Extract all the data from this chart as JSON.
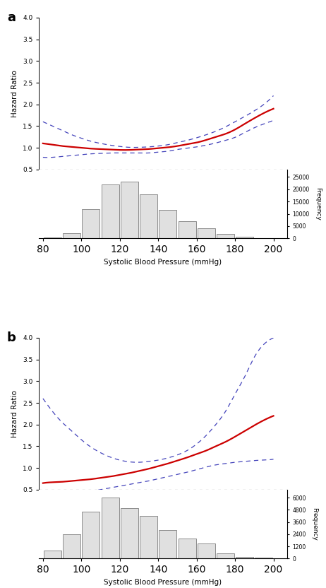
{
  "panel_a": {
    "label": "a",
    "x_range": [
      78,
      207
    ],
    "hr_ylim": [
      0.5,
      4.0
    ],
    "hr_yticks": [
      0.5,
      1.0,
      1.5,
      2.0,
      2.5,
      3.0,
      3.5,
      4.0
    ],
    "hr_ytick_labels": [
      "0.5",
      "1.0",
      "1.5",
      "2.0",
      "2.5",
      "3.0",
      "3.5",
      "4.0"
    ],
    "hr_ylabel": "Hazard Ratio",
    "freq_yticks": [
      0,
      5000,
      10000,
      15000,
      20000,
      25000
    ],
    "freq_ytick_labels": [
      "0",
      "5000",
      "10000",
      "15000",
      "20000",
      "25000"
    ],
    "freq_ylabel": "Frequency",
    "freq_ylim": [
      0,
      28000
    ],
    "xlabel": "Systolic Blood Pressure (mmHg)",
    "xticks": [
      80,
      100,
      120,
      140,
      160,
      180,
      200
    ],
    "ref_line_y": 0.5,
    "hist_edges": [
      80,
      90,
      100,
      110,
      120,
      130,
      140,
      150,
      160,
      170,
      180,
      190,
      200
    ],
    "hist_counts": [
      300,
      2000,
      12000,
      22000,
      23000,
      18000,
      11500,
      7000,
      4200,
      1800,
      600,
      200
    ],
    "hr_x": [
      80,
      85,
      90,
      95,
      100,
      105,
      110,
      115,
      120,
      125,
      130,
      135,
      140,
      145,
      150,
      155,
      160,
      165,
      170,
      175,
      180,
      185,
      190,
      195,
      200
    ],
    "hr_y": [
      1.1,
      1.07,
      1.04,
      1.02,
      1.0,
      0.98,
      0.97,
      0.96,
      0.95,
      0.95,
      0.96,
      0.97,
      0.99,
      1.01,
      1.04,
      1.08,
      1.12,
      1.18,
      1.25,
      1.32,
      1.42,
      1.55,
      1.68,
      1.8,
      1.9
    ],
    "ci_up": [
      1.6,
      1.5,
      1.4,
      1.3,
      1.22,
      1.15,
      1.1,
      1.06,
      1.03,
      1.01,
      1.01,
      1.02,
      1.04,
      1.07,
      1.12,
      1.17,
      1.23,
      1.3,
      1.38,
      1.48,
      1.6,
      1.72,
      1.85,
      2.0,
      2.2
    ],
    "ci_lo": [
      0.78,
      0.78,
      0.8,
      0.82,
      0.84,
      0.86,
      0.87,
      0.88,
      0.88,
      0.88,
      0.88,
      0.88,
      0.9,
      0.92,
      0.96,
      0.99,
      1.02,
      1.06,
      1.11,
      1.17,
      1.24,
      1.35,
      1.46,
      1.55,
      1.63
    ]
  },
  "panel_b": {
    "label": "b",
    "x_range": [
      78,
      207
    ],
    "hr_ylim": [
      0.5,
      4.0
    ],
    "hr_yticks": [
      0.5,
      1.0,
      1.5,
      2.0,
      2.5,
      3.0,
      3.5,
      4.0
    ],
    "hr_ytick_labels": [
      "0.5",
      "1.0",
      "1.5",
      "2.0",
      "2.5",
      "3.0",
      "3.5",
      "4.0"
    ],
    "hr_ylabel": "Hazard Ratio",
    "freq_yticks": [
      0,
      1200,
      2400,
      3600,
      4800,
      6000
    ],
    "freq_ytick_labels": [
      "0",
      "1200",
      "2400",
      "3600",
      "4800",
      "6000"
    ],
    "freq_ylabel": "Frequency",
    "freq_ylim": [
      0,
      6800
    ],
    "xlabel": "Systolic Blood Pressure (mmHg)",
    "xticks": [
      80,
      100,
      120,
      140,
      160,
      180,
      200
    ],
    "ref_line_y": 0.5,
    "hist_edges": [
      80,
      90,
      100,
      110,
      120,
      130,
      140,
      150,
      160,
      170,
      180,
      190,
      200
    ],
    "hist_counts": [
      800,
      2400,
      4600,
      6000,
      5000,
      4200,
      2800,
      2000,
      1500,
      500,
      200,
      100
    ],
    "hr_x": [
      80,
      85,
      90,
      95,
      100,
      105,
      110,
      115,
      120,
      125,
      130,
      135,
      140,
      145,
      150,
      155,
      160,
      165,
      170,
      175,
      180,
      185,
      190,
      195,
      200
    ],
    "hr_y": [
      0.65,
      0.67,
      0.68,
      0.7,
      0.72,
      0.74,
      0.77,
      0.8,
      0.84,
      0.88,
      0.93,
      0.98,
      1.04,
      1.1,
      1.17,
      1.24,
      1.32,
      1.4,
      1.5,
      1.6,
      1.72,
      1.85,
      1.98,
      2.1,
      2.2
    ],
    "ci_up": [
      2.6,
      2.3,
      2.05,
      1.85,
      1.65,
      1.48,
      1.35,
      1.25,
      1.18,
      1.14,
      1.13,
      1.15,
      1.18,
      1.23,
      1.3,
      1.4,
      1.55,
      1.75,
      2.0,
      2.3,
      2.7,
      3.1,
      3.55,
      3.85,
      4.0
    ],
    "ci_lo": [
      0.35,
      0.37,
      0.38,
      0.4,
      0.43,
      0.46,
      0.5,
      0.54,
      0.58,
      0.62,
      0.66,
      0.7,
      0.75,
      0.8,
      0.85,
      0.9,
      0.96,
      1.02,
      1.07,
      1.1,
      1.13,
      1.15,
      1.17,
      1.18,
      1.2
    ]
  },
  "colors": {
    "red_line": "#cc0000",
    "blue_dashed": "#4444bb",
    "hist_fill": "#e0e0e0",
    "hist_edge": "#666666",
    "ref_dotted": "#888888",
    "background": "#ffffff"
  }
}
